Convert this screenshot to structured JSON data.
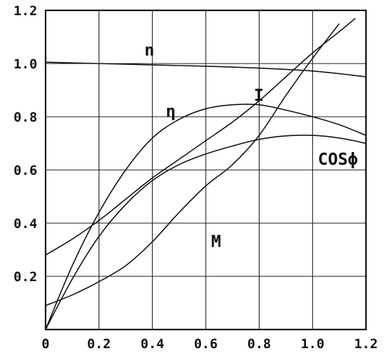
{
  "chart_data": {
    "type": "line",
    "title": "",
    "xlabel": "",
    "ylabel": "",
    "xlim": [
      0,
      1.2
    ],
    "ylim": [
      0,
      1.2
    ],
    "grid": true,
    "x_ticks": [
      {
        "value": 0,
        "label": "0"
      },
      {
        "value": 0.2,
        "label": "0.2"
      },
      {
        "value": 0.4,
        "label": "0.4"
      },
      {
        "value": 0.6,
        "label": "0.6"
      },
      {
        "value": 0.8,
        "label": "0.8"
      },
      {
        "value": 1.0,
        "label": "1.0"
      },
      {
        "value": 1.2,
        "label": "1.2"
      }
    ],
    "y_ticks": [
      {
        "value": 0.2,
        "label": "0.2"
      },
      {
        "value": 0.4,
        "label": "0.4"
      },
      {
        "value": 0.6,
        "label": "0.6"
      },
      {
        "value": 0.8,
        "label": "0.8"
      },
      {
        "value": 1.0,
        "label": "1.0"
      },
      {
        "value": 1.2,
        "label": "1.2"
      }
    ],
    "series": [
      {
        "name": "n",
        "label_at": [
          0.37,
          1.03
        ],
        "points": [
          [
            0,
            1.005
          ],
          [
            0.2,
            1.0
          ],
          [
            0.4,
            0.995
          ],
          [
            0.6,
            0.99
          ],
          [
            0.8,
            0.983
          ],
          [
            0.9,
            0.978
          ],
          [
            1.0,
            0.972
          ],
          [
            1.1,
            0.962
          ],
          [
            1.2,
            0.95
          ]
        ]
      },
      {
        "name": "η",
        "label_at": [
          0.45,
          0.8
        ],
        "points": [
          [
            0,
            0
          ],
          [
            0.1,
            0.24
          ],
          [
            0.2,
            0.44
          ],
          [
            0.3,
            0.6
          ],
          [
            0.4,
            0.72
          ],
          [
            0.5,
            0.79
          ],
          [
            0.6,
            0.83
          ],
          [
            0.7,
            0.845
          ],
          [
            0.8,
            0.845
          ],
          [
            0.9,
            0.825
          ],
          [
            1.0,
            0.8
          ],
          [
            1.1,
            0.77
          ],
          [
            1.2,
            0.73
          ]
        ]
      },
      {
        "name": "I",
        "label_at": [
          0.78,
          0.86
        ],
        "points": [
          [
            0,
            0.28
          ],
          [
            0.1,
            0.34
          ],
          [
            0.2,
            0.41
          ],
          [
            0.3,
            0.49
          ],
          [
            0.4,
            0.57
          ],
          [
            0.5,
            0.64
          ],
          [
            0.6,
            0.71
          ],
          [
            0.7,
            0.78
          ],
          [
            0.8,
            0.86
          ],
          [
            0.9,
            0.95
          ],
          [
            1.0,
            1.04
          ],
          [
            1.1,
            1.12
          ],
          [
            1.16,
            1.17
          ]
        ]
      },
      {
        "name": "COSϕ",
        "label_at": [
          1.02,
          0.62
        ],
        "points": [
          [
            0,
            0.0
          ],
          [
            0.1,
            0.19
          ],
          [
            0.2,
            0.35
          ],
          [
            0.3,
            0.47
          ],
          [
            0.4,
            0.56
          ],
          [
            0.5,
            0.62
          ],
          [
            0.6,
            0.66
          ],
          [
            0.7,
            0.69
          ],
          [
            0.8,
            0.715
          ],
          [
            0.9,
            0.728
          ],
          [
            1.0,
            0.73
          ],
          [
            1.1,
            0.72
          ],
          [
            1.2,
            0.7
          ]
        ]
      },
      {
        "name": "M",
        "label_at": [
          0.62,
          0.31
        ],
        "points": [
          [
            0,
            0.09
          ],
          [
            0.1,
            0.13
          ],
          [
            0.2,
            0.18
          ],
          [
            0.3,
            0.24
          ],
          [
            0.4,
            0.33
          ],
          [
            0.5,
            0.44
          ],
          [
            0.6,
            0.54
          ],
          [
            0.7,
            0.62
          ],
          [
            0.8,
            0.73
          ],
          [
            0.9,
            0.88
          ],
          [
            1.0,
            1.02
          ],
          [
            1.1,
            1.15
          ]
        ]
      }
    ]
  }
}
